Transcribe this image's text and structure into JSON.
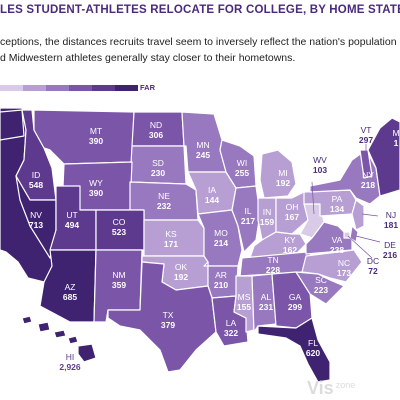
{
  "header": {
    "title": "LES STUDENT-ATHLETES RELOCATE FOR COLLEGE, BY HOME STATE",
    "description_lines": [
      "ceptions, the distances recruits travel seem to inversely reflect  the nation's population d",
      "d Midwestern athletes generally stay closer to their hometowns."
    ]
  },
  "legend": {
    "far_label": "FAR",
    "colors": [
      "#d9cbe8",
      "#b79fd4",
      "#9878bf",
      "#7a55a8",
      "#5e3a8f",
      "#3f2270"
    ]
  },
  "states": [
    {
      "abbr": "ID",
      "value": "548",
      "color": "#5e3a8f"
    },
    {
      "abbr": "MT",
      "value": "390",
      "color": "#7a55a8"
    },
    {
      "abbr": "ND",
      "value": "306",
      "color": "#7a55a8"
    },
    {
      "abbr": "SD",
      "value": "230",
      "color": "#9878bf"
    },
    {
      "abbr": "MN",
      "value": "245",
      "color": "#9878bf"
    },
    {
      "abbr": "WY",
      "value": "390",
      "color": "#7a55a8"
    },
    {
      "abbr": "NE",
      "value": "232",
      "color": "#9878bf"
    },
    {
      "abbr": "IA",
      "value": "144",
      "color": "#b79fd4"
    },
    {
      "abbr": "WI",
      "value": "255",
      "color": "#9878bf"
    },
    {
      "abbr": "MI",
      "value": "192",
      "color": "#b79fd4"
    },
    {
      "abbr": "NV",
      "value": "713",
      "color": "#3f2270"
    },
    {
      "abbr": "UT",
      "value": "494",
      "color": "#5e3a8f"
    },
    {
      "abbr": "CO",
      "value": "523",
      "color": "#5e3a8f"
    },
    {
      "abbr": "KS",
      "value": "171",
      "color": "#b79fd4"
    },
    {
      "abbr": "MO",
      "value": "214",
      "color": "#9878bf"
    },
    {
      "abbr": "IL",
      "value": "217",
      "color": "#9878bf"
    },
    {
      "abbr": "IN",
      "value": "159",
      "color": "#b79fd4"
    },
    {
      "abbr": "OH",
      "value": "167",
      "color": "#b79fd4"
    },
    {
      "abbr": "WV",
      "value": "103",
      "color": "#d9cbe8"
    },
    {
      "abbr": "PA",
      "value": "134",
      "color": "#b79fd4"
    },
    {
      "abbr": "NY",
      "value": "218",
      "color": "#9878bf"
    },
    {
      "abbr": "VT",
      "value": "297",
      "color": "#7a55a8"
    },
    {
      "abbr": "AZ",
      "value": "685",
      "color": "#3f2270"
    },
    {
      "abbr": "NM",
      "value": "359",
      "color": "#7a55a8"
    },
    {
      "abbr": "OK",
      "value": "192",
      "color": "#b79fd4"
    },
    {
      "abbr": "AR",
      "value": "210",
      "color": "#9878bf"
    },
    {
      "abbr": "KY",
      "value": "162",
      "color": "#b79fd4"
    },
    {
      "abbr": "TN",
      "value": "228",
      "color": "#9878bf"
    },
    {
      "abbr": "VA",
      "value": "238",
      "color": "#9878bf"
    },
    {
      "abbr": "NC",
      "value": "173",
      "color": "#b79fd4"
    },
    {
      "abbr": "NJ",
      "value": "181",
      "color": "#b79fd4"
    },
    {
      "abbr": "DE",
      "value": "216",
      "color": "#9878bf"
    },
    {
      "abbr": "DC",
      "value": "72",
      "color": "#d9cbe8"
    },
    {
      "abbr": "TX",
      "value": "379",
      "color": "#7a55a8"
    },
    {
      "abbr": "LA",
      "value": "322",
      "color": "#7a55a8"
    },
    {
      "abbr": "MS",
      "value": "155",
      "color": "#b79fd4"
    },
    {
      "abbr": "AL",
      "value": "231",
      "color": "#9878bf"
    },
    {
      "abbr": "GA",
      "value": "299",
      "color": "#7a55a8"
    },
    {
      "abbr": "SC",
      "value": "223",
      "color": "#9878bf"
    },
    {
      "abbr": "FL",
      "value": "620",
      "color": "#3f2270"
    },
    {
      "abbr": "HI",
      "value": "2,926",
      "color": "#3f2270"
    }
  ],
  "partial_labels": {
    "me": "M",
    "me_value": "1"
  },
  "watermark": {
    "text": "Vis",
    "small": "zone"
  }
}
